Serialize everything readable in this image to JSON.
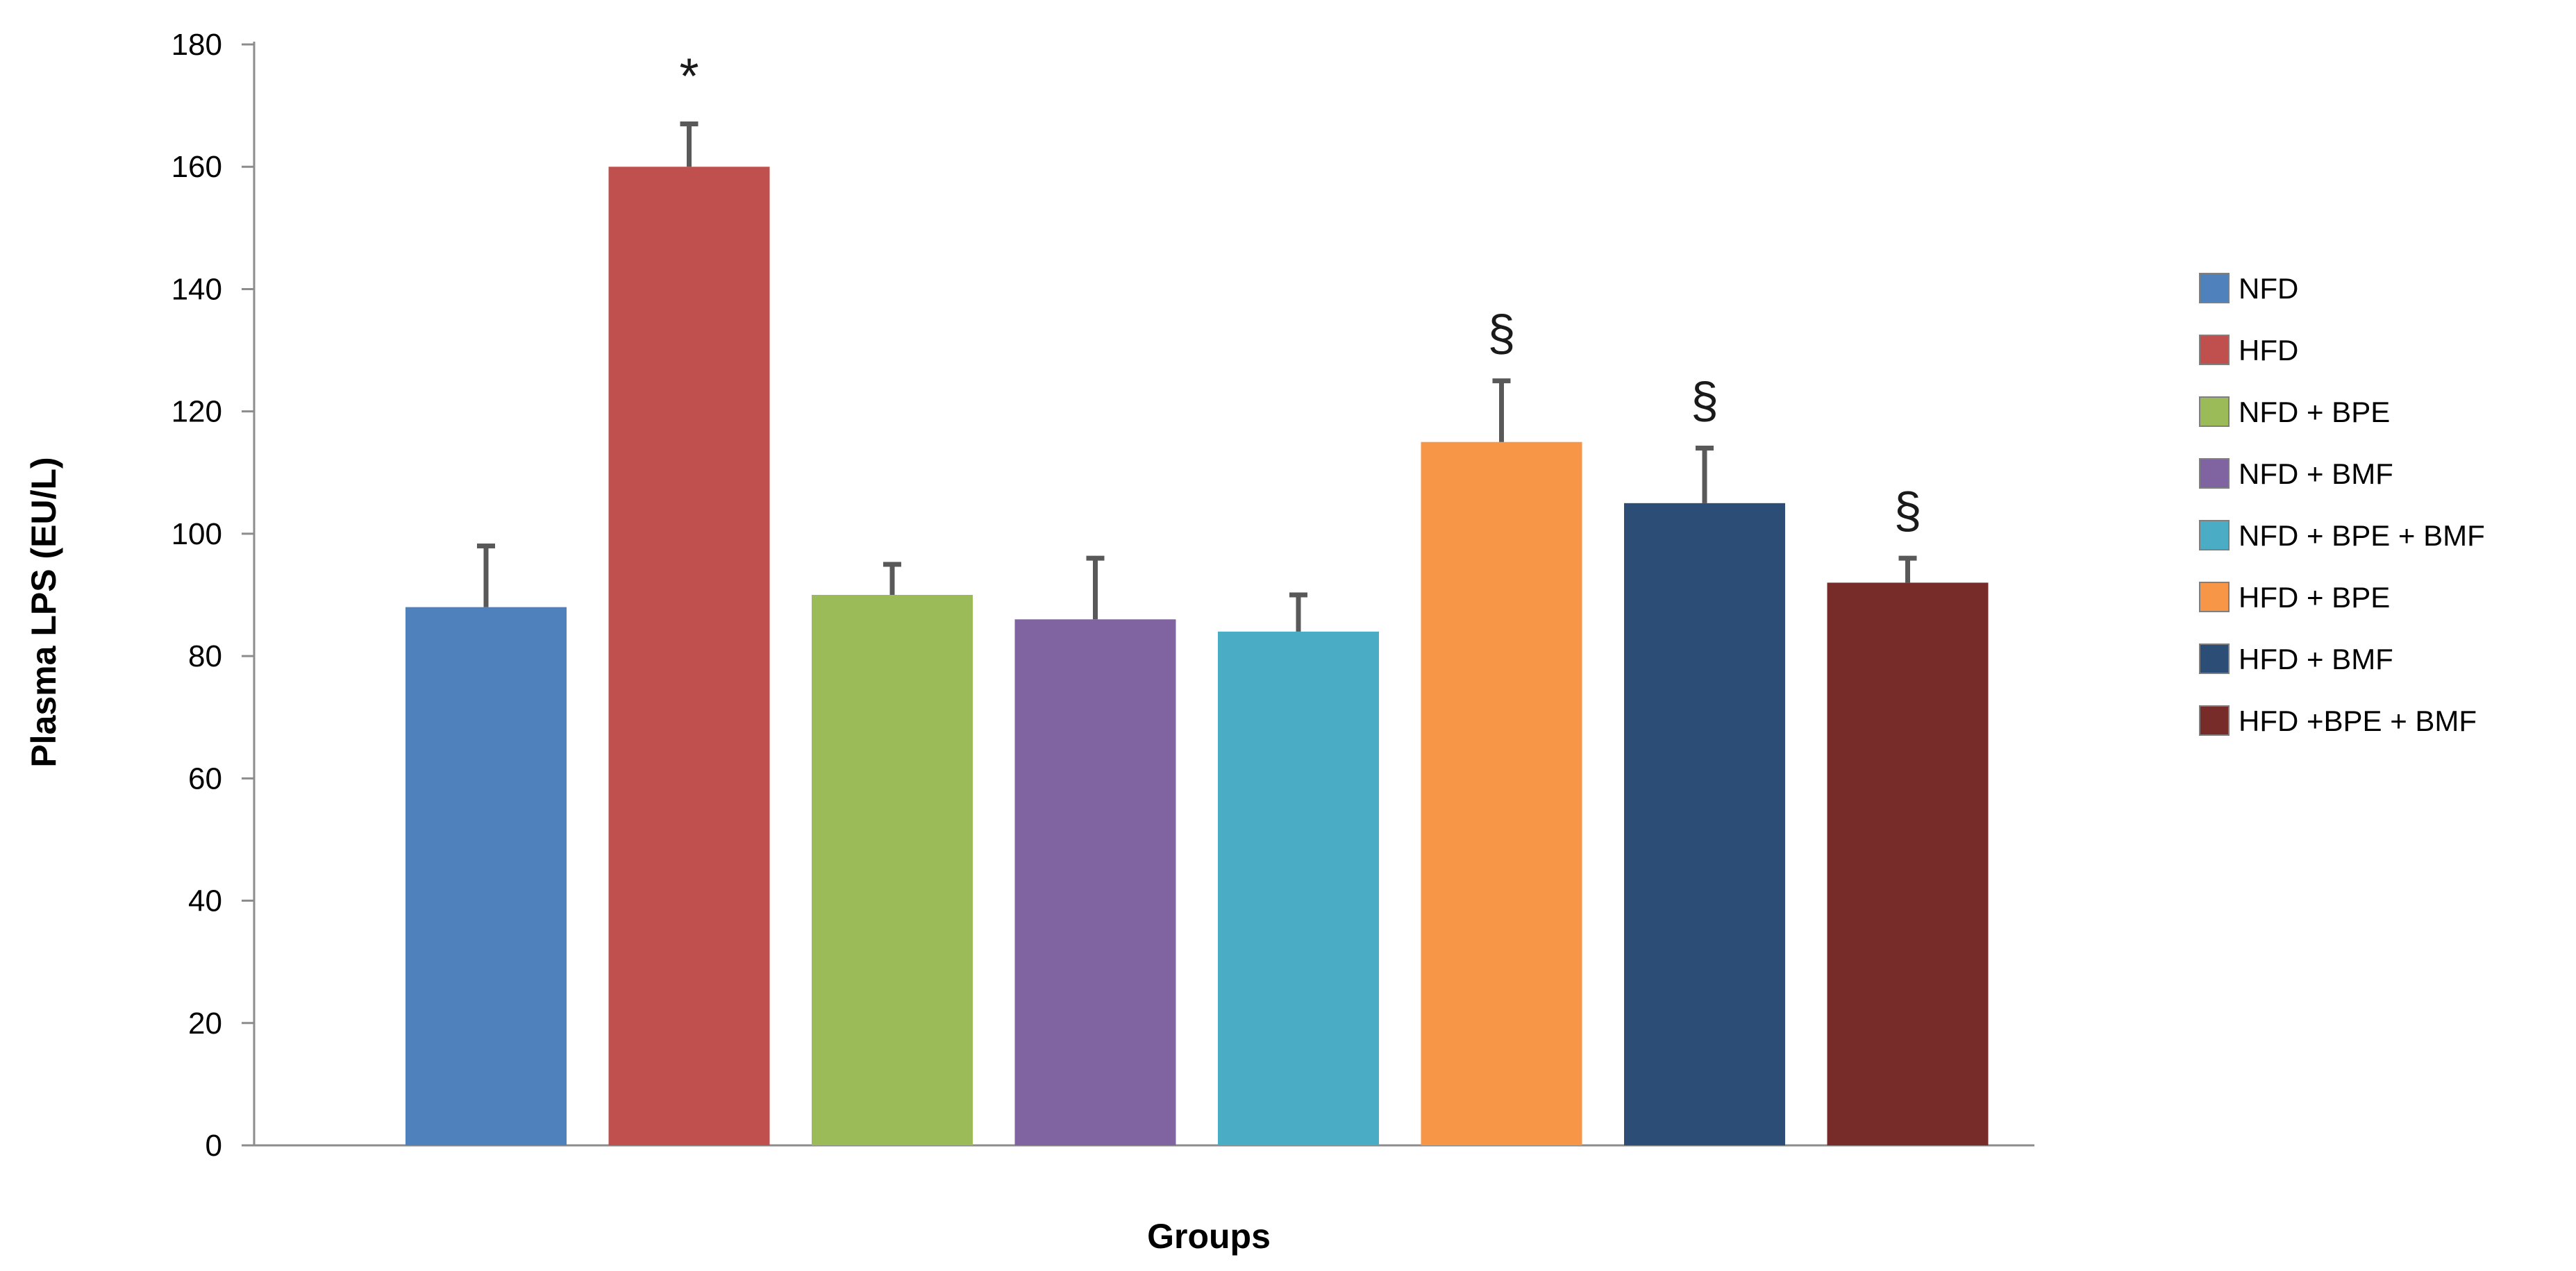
{
  "chart_data": {
    "type": "bar",
    "title": "",
    "xlabel": "Groups",
    "ylabel": "Plasma LPS (EU/L)",
    "ylim": [
      0,
      180
    ],
    "yticks": [
      0,
      20,
      40,
      60,
      80,
      100,
      120,
      140,
      160,
      180
    ],
    "grid": false,
    "legend_position": "right",
    "categories": [
      "NFD",
      "HFD",
      "NFD + BPE",
      "NFD + BMF",
      "NFD + BPE + BMF",
      "HFD + BPE",
      "HFD + BMF",
      "HFD +BPE + BMF"
    ],
    "values": [
      88,
      160,
      90,
      86,
      84,
      115,
      105,
      92
    ],
    "error_upper": [
      98,
      167,
      95,
      96,
      90,
      125,
      114,
      96
    ],
    "annotations": [
      "",
      "*",
      "",
      "",
      "",
      "§",
      "§",
      "§"
    ],
    "colors": [
      "#4f81bd",
      "#c0504d",
      "#9bbb59",
      "#8064a2",
      "#4bacc6",
      "#f79646",
      "#2c4d75",
      "#772c2a"
    ],
    "error_bar_color": "#595959"
  }
}
